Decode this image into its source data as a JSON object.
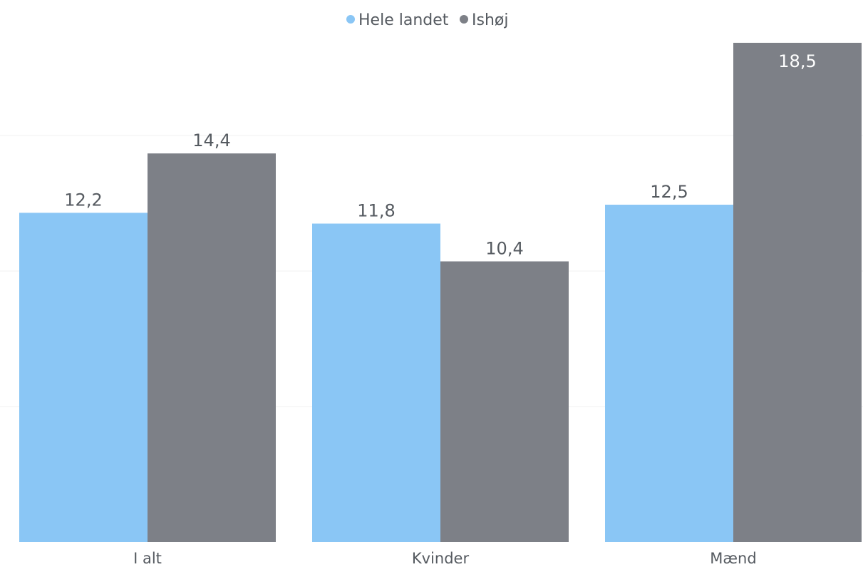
{
  "chart_data": {
    "type": "bar",
    "title": "",
    "xlabel": "",
    "ylabel": "",
    "categories": [
      "I alt",
      "Kvinder",
      "Mænd"
    ],
    "series": [
      {
        "name": "Hele landet",
        "values": [
          12.2,
          11.8,
          12.5
        ],
        "labels": [
          "12,2",
          "11,8",
          "12,5"
        ],
        "color": "#8ac6f5"
      },
      {
        "name": "Ishøj",
        "values": [
          14.4,
          10.4,
          18.5
        ],
        "labels": [
          "14,4",
          "10,4",
          "18,5"
        ],
        "color": "#7d8087"
      }
    ],
    "ylim": [
      0,
      18.5
    ],
    "grid": true,
    "legend_position": "top-center"
  }
}
